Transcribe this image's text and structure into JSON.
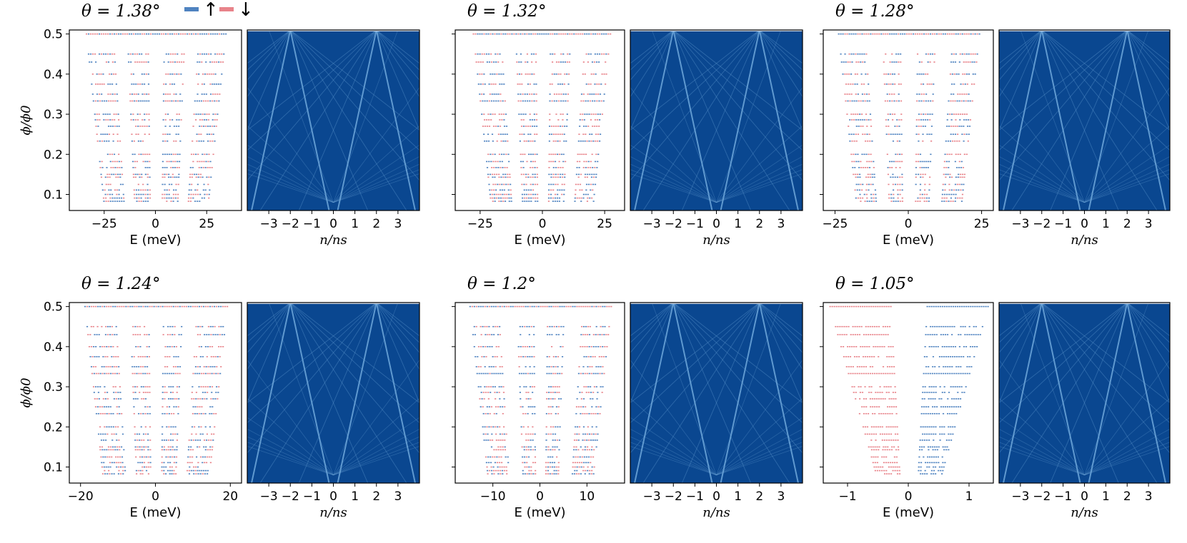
{
  "legend": {
    "up_color": "#4f83c0",
    "down_color": "#e8838a",
    "up_symbol": "↑",
    "down_symbol": "↓"
  },
  "colors": {
    "map_background": "#0a4790",
    "map_line": "#6fa8dc",
    "axis": "#000000"
  },
  "ylabel": "ϕ/ϕ0",
  "spectrum_xlabel": "E (meV)",
  "density_xlabel": "n/ns",
  "density_ticks": [
    "−3",
    "−2",
    "−1",
    "0",
    "1",
    "2",
    "3"
  ],
  "y_ticks": [
    "0.1",
    "0.2",
    "0.3",
    "0.4",
    "0.5"
  ],
  "chart_data": [
    {
      "type": "scatter",
      "title": "θ = 1.38°",
      "xlabel": "E (meV)",
      "ylabel": "ϕ/ϕ0",
      "xlim": [
        -42,
        42
      ],
      "ylim": [
        0.06,
        0.51
      ],
      "x_ticks": [
        "−25",
        "0",
        "25"
      ],
      "x_tick_values": [
        -25,
        0,
        25
      ],
      "band_edges": [
        -34,
        -21,
        -14,
        -4,
        4,
        14,
        21,
        34
      ],
      "series": [
        {
          "name": "↑"
        },
        {
          "name": "↓"
        }
      ],
      "companion_map": {
        "xlabel": "n/ns",
        "xlim": [
          -4,
          4
        ],
        "ylim": [
          0.06,
          0.51
        ],
        "grid": "off"
      }
    },
    {
      "type": "scatter",
      "title": "θ = 1.32°",
      "xlabel": "E (meV)",
      "ylabel": "ϕ/ϕ0",
      "xlim": [
        -35,
        33
      ],
      "ylim": [
        0.06,
        0.51
      ],
      "x_ticks": [
        "−25",
        "0",
        "25"
      ],
      "x_tick_values": [
        -25,
        0,
        25
      ],
      "band_edges": [
        -28,
        -17,
        -11,
        -3,
        3,
        11,
        17,
        27
      ],
      "companion_map": {
        "xlabel": "n/ns",
        "xlim": [
          -4,
          4
        ],
        "ylim": [
          0.06,
          0.51
        ],
        "grid": "off"
      }
    },
    {
      "type": "scatter",
      "title": "θ = 1.28°",
      "xlabel": "E (meV)",
      "ylabel": "ϕ/ϕ0",
      "xlim": [
        -29,
        29
      ],
      "ylim": [
        0.06,
        0.51
      ],
      "x_ticks": [
        "−25",
        "0",
        "25"
      ],
      "x_tick_values": [
        -25,
        0,
        25
      ],
      "band_edges": [
        -24,
        -15,
        -9,
        -3,
        3,
        9,
        15,
        24
      ],
      "companion_map": {
        "xlabel": "n/ns",
        "xlim": [
          -4,
          4
        ],
        "ylim": [
          0.06,
          0.51
        ],
        "grid": "off"
      }
    },
    {
      "type": "scatter",
      "title": "θ = 1.24°",
      "xlabel": "E (meV)",
      "ylabel": "ϕ/ϕ0",
      "xlim": [
        -23,
        23
      ],
      "ylim": [
        0.06,
        0.51
      ],
      "x_ticks": [
        "−20",
        "0",
        "20"
      ],
      "x_tick_values": [
        -20,
        0,
        20
      ],
      "band_edges": [
        -19,
        -11,
        -7,
        -2,
        2,
        7,
        11,
        19
      ],
      "companion_map": {
        "xlabel": "n/ns",
        "xlim": [
          -4,
          4
        ],
        "ylim": [
          0.06,
          0.51
        ],
        "grid": "off"
      }
    },
    {
      "type": "scatter",
      "title": "θ = 1.2°",
      "xlabel": "E (meV)",
      "ylabel": "ϕ/ϕ0",
      "xlim": [
        -18,
        18
      ],
      "ylim": [
        0.06,
        0.51
      ],
      "x_ticks": [
        "−10",
        "0",
        "10"
      ],
      "x_tick_values": [
        -10,
        0,
        10
      ],
      "band_edges": [
        -15,
        -9,
        -5,
        -1.5,
        1.5,
        5,
        9,
        15
      ],
      "companion_map": {
        "xlabel": "n/ns",
        "xlim": [
          -4,
          4
        ],
        "ylim": [
          0.06,
          0.51
        ],
        "grid": "off"
      }
    },
    {
      "type": "scatter",
      "title": "θ = 1.05°",
      "xlabel": "E (meV)",
      "ylabel": "ϕ/ϕ0",
      "xlim": [
        -1.4,
        1.4
      ],
      "ylim": [
        0.06,
        0.51
      ],
      "x_ticks": [
        "−1",
        "0",
        "1"
      ],
      "x_tick_values": [
        -1,
        0,
        1
      ],
      "band_edges": [
        -1.3,
        -0.7,
        -0.3,
        0.0,
        0.0,
        0.3,
        0.7,
        1.3
      ],
      "companion_map": {
        "xlabel": "n/ns",
        "xlim": [
          -4,
          4
        ],
        "ylim": [
          0.06,
          0.51
        ],
        "grid": "off"
      }
    }
  ]
}
